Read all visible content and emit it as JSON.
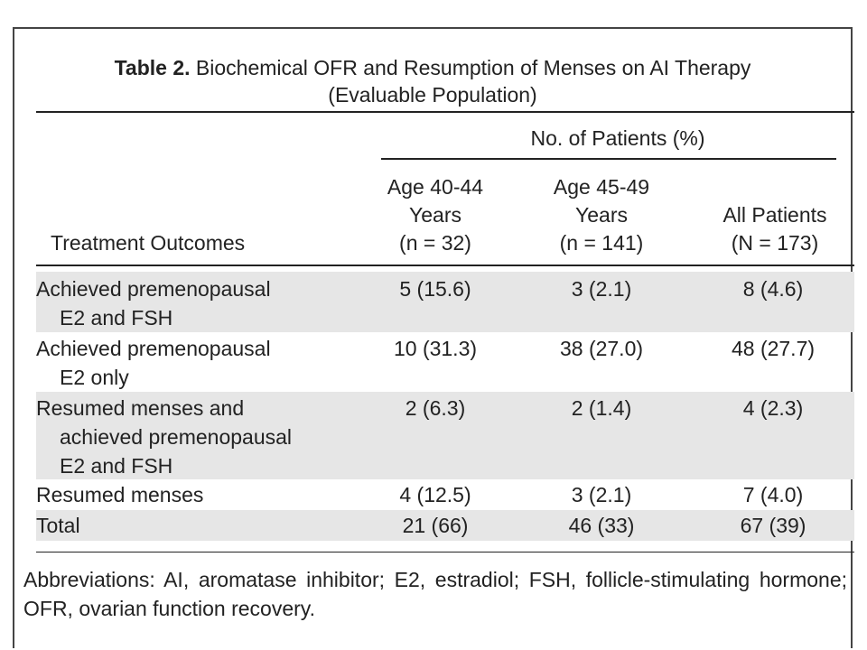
{
  "table": {
    "title_label": "Table 2.",
    "title_text": "Biochemical OFR and Resumption of Menses on AI Therapy",
    "title_line2": "(Evaluable Population)",
    "header_group": "No. of Patients (%)",
    "row_header": "Treatment Outcomes",
    "columns": [
      {
        "line1": "Age 40-44",
        "line2": "Years",
        "line3": "(n = 32)"
      },
      {
        "line1": "Age 45-49",
        "line2": "Years",
        "line3": "(n = 141)"
      },
      {
        "line1": "",
        "line2": "All Patients",
        "line3": "(N = 173)"
      }
    ],
    "rows": [
      {
        "label_lines": [
          "Achieved premenopausal",
          "E2 and FSH"
        ],
        "values": [
          "5 (15.6)",
          "3 (2.1)",
          "8 (4.6)"
        ]
      },
      {
        "label_lines": [
          "Achieved premenopausal",
          "E2 only"
        ],
        "values": [
          "10 (31.3)",
          "38 (27.0)",
          "48 (27.7)"
        ]
      },
      {
        "label_lines": [
          "Resumed menses and",
          "achieved premenopausal",
          "E2 and FSH"
        ],
        "values": [
          "2 (6.3)",
          "2 (1.4)",
          "4 (2.3)"
        ]
      },
      {
        "label_lines": [
          "Resumed menses"
        ],
        "values": [
          "4 (12.5)",
          "3 (2.1)",
          "7 (4.0)"
        ]
      },
      {
        "label_lines": [
          "Total"
        ],
        "values": [
          "21 (66)",
          "46 (33)",
          "67 (39)"
        ]
      }
    ],
    "footnote": "Abbreviations: AI, aromatase inhibitor; E2, estradiol; FSH, follicle-stimulating hormone; OFR, ovarian function recovery."
  }
}
